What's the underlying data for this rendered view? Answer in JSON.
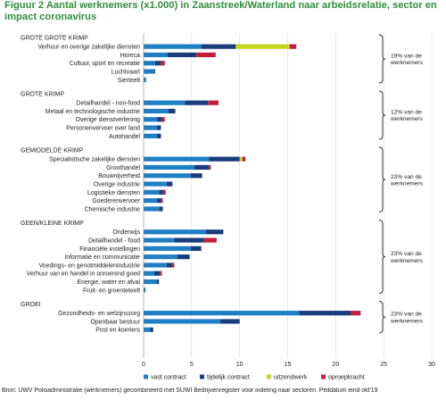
{
  "figure": {
    "title": "Figuur 2 Aantal werknemers (x1.000) in Zaanstreek/Waterland naar arbeidsrelatie, sector en impact coronavirus",
    "source": "Bron: UWV Polisadministratie (werknemers) gecombineerd met SUWI Bedrijvenregister voor indeling naar sectoren. Peildatum eind okt'19"
  },
  "colors": {
    "vast contract": "#1f7fc4",
    "tijdelijk contract": "#1b3c7a",
    "uitzendwerk": "#c6d21d",
    "oproepkracht": "#c41f3a",
    "title": "#2f8f3a"
  },
  "chart_data": {
    "type": "bar",
    "orientation": "horizontal",
    "stacked": true,
    "xlim": [
      0,
      30
    ],
    "xticks": [
      0,
      5,
      10,
      15,
      20,
      25,
      30
    ],
    "series_names": [
      "vast contract",
      "tijdelijk contract",
      "uitzendwerk",
      "oproepkracht"
    ],
    "legend": [
      "vast contract",
      "tijdelijk contract",
      "uitzendwerk",
      "oproepkracht"
    ],
    "legend_position": "bottom",
    "groups": [
      {
        "title": "GROTE GROTE KRIMP",
        "bracket_label": [
          "19% van de",
          "werknemers"
        ],
        "items": [
          {
            "label": "Verhuur en overige zakelijke diensten",
            "values": [
              6,
              3.6,
              5.6,
              0.7
            ]
          },
          {
            "label": "Horeca",
            "values": [
              2.5,
              3,
              0,
              2
            ]
          },
          {
            "label": "Cultuur, sport en recreatie",
            "values": [
              1.2,
              0.6,
              0,
              0.4
            ]
          },
          {
            "label": "Luchtvaart",
            "values": [
              1.1,
              0.1,
              0,
              0
            ]
          },
          {
            "label": "Sierteelt",
            "values": [
              0.2,
              0.05,
              0,
              0
            ]
          }
        ]
      },
      {
        "title": "GROTE KRIMP",
        "bracket_label": [
          "12% van de",
          "werknemers"
        ],
        "items": [
          {
            "label": "Detailhandel - non-food",
            "values": [
              4.3,
              2.4,
              0,
              1.1
            ]
          },
          {
            "label": "Metaal en technologische industrie",
            "values": [
              2.6,
              0.7,
              0,
              0
            ]
          },
          {
            "label": "Overige dienstverlening",
            "values": [
              1.4,
              0.5,
              0,
              0.3
            ]
          },
          {
            "label": "Personenvervoer over land",
            "values": [
              1.4,
              0.4,
              0,
              0
            ]
          },
          {
            "label": "Autohandel",
            "values": [
              1.4,
              0.4,
              0,
              0
            ]
          }
        ]
      },
      {
        "title": "GEMIDDELDE KRIMP",
        "bracket_label": [
          "23% van de",
          "werknemers"
        ],
        "items": [
          {
            "label": "Specialistische zakelijke diensten",
            "values": [
              6.8,
              3.2,
              0.3,
              0.3
            ]
          },
          {
            "label": "Groothandel",
            "values": [
              5.3,
              1.5,
              0,
              0.2
            ]
          },
          {
            "label": "Bouwnijverheid",
            "values": [
              4.9,
              1.2,
              0,
              0
            ]
          },
          {
            "label": "Overige industrie",
            "values": [
              2.4,
              0.6,
              0,
              0
            ]
          },
          {
            "label": "Logistieke diensten",
            "values": [
              1.6,
              0.5,
              0,
              0.2
            ]
          },
          {
            "label": "Goederenvervoer",
            "values": [
              1.4,
              0.4,
              0,
              0.2
            ]
          },
          {
            "label": "Chemische industrie",
            "values": [
              1.6,
              0.4,
              0,
              0
            ]
          }
        ]
      },
      {
        "title": "GEEN/KLEINE KRIMP",
        "bracket_label": [
          "23% van de",
          "werknemers"
        ],
        "items": [
          {
            "label": "Onderwijs",
            "values": [
              6.5,
              1.8,
              0,
              0
            ]
          },
          {
            "label": "Detailhandel - food",
            "values": [
              3.2,
              3.1,
              0,
              1.3
            ]
          },
          {
            "label": "Financiële instellingen",
            "values": [
              4.9,
              1.1,
              0,
              0
            ]
          },
          {
            "label": "Informatie en communicatie",
            "values": [
              3.5,
              1.3,
              0,
              0
            ]
          },
          {
            "label": "Voedings- en genotmiddelenindustrie",
            "values": [
              2.4,
              0.6,
              0,
              0.2
            ]
          },
          {
            "label": "Verhuur van en handel in onroerend goed",
            "values": [
              1.1,
              0.6,
              0,
              0.2
            ]
          },
          {
            "label": "Energie, water en afval",
            "values": [
              1.4,
              0.2,
              0,
              0
            ]
          },
          {
            "label": "Fruit- en groenteteelt",
            "values": [
              0.15,
              0.05,
              0,
              0
            ]
          }
        ]
      },
      {
        "title": "GROEI",
        "bracket_label": [
          "23% van de",
          "werknemers"
        ],
        "items": [
          {
            "label": "Gezondheids- en welzijnszorg",
            "values": [
              16.2,
              5.4,
              0,
              1
            ]
          },
          {
            "label": "Openbaar bestuur",
            "values": [
              8,
              2,
              0,
              0
            ]
          },
          {
            "label": "Post en koeriers",
            "values": [
              0.7,
              0.3,
              0,
              0
            ]
          }
        ]
      }
    ]
  }
}
